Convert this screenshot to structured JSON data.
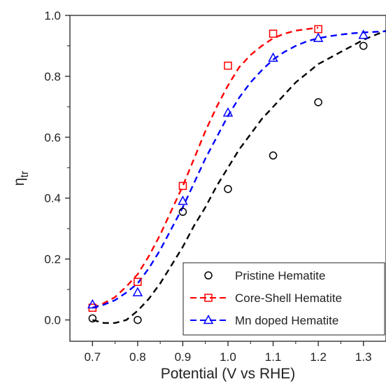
{
  "chart_data": {
    "type": "scatter",
    "xlabel": "Potential (V vs RHE)",
    "ylabel": "η",
    "ylabel_sub": "tr",
    "xlim": [
      0.65,
      1.35
    ],
    "ylim": [
      -0.07,
      1.0
    ],
    "xticks": [
      0.7,
      0.8,
      0.9,
      1.0,
      1.1,
      1.2,
      1.3
    ],
    "xtick_labels": [
      "0.7",
      "0.8",
      "0.9",
      "1.0",
      "1.1",
      "1.2",
      "1.3"
    ],
    "yticks": [
      0.0,
      0.2,
      0.4,
      0.6,
      0.8,
      1.0
    ],
    "ytick_labels": [
      "0.0",
      "0.2",
      "0.4",
      "0.6",
      "0.8",
      "1.0"
    ],
    "legend_position": "bottom-right",
    "series": [
      {
        "name": "Pristine Hematite",
        "marker": "circle",
        "color": "#000000",
        "x": [
          0.7,
          0.8,
          0.9,
          1.0,
          1.1,
          1.2,
          1.3
        ],
        "y": [
          0.005,
          0.0,
          0.355,
          0.43,
          0.54,
          0.715,
          0.9
        ],
        "fit_x": [
          0.7,
          0.725,
          0.75,
          0.775,
          0.8,
          0.825,
          0.85,
          0.875,
          0.9,
          0.925,
          0.95,
          0.975,
          1.0,
          1.025,
          1.05,
          1.075,
          1.1,
          1.125,
          1.15,
          1.175,
          1.2,
          1.225,
          1.25,
          1.275,
          1.3,
          1.325,
          1.35
        ],
        "fit_y": [
          0.0,
          -0.01,
          -0.01,
          0.0,
          0.03,
          0.07,
          0.12,
          0.18,
          0.24,
          0.31,
          0.37,
          0.44,
          0.5,
          0.56,
          0.61,
          0.66,
          0.7,
          0.74,
          0.78,
          0.81,
          0.84,
          0.86,
          0.88,
          0.9,
          0.92,
          0.935,
          0.95
        ]
      },
      {
        "name": "Core-Shell Hematite",
        "marker": "square",
        "color": "#ff0000",
        "x": [
          0.7,
          0.8,
          0.9,
          1.0,
          1.1,
          1.2
        ],
        "y": [
          0.04,
          0.125,
          0.44,
          0.835,
          0.94,
          0.955
        ],
        "fit_x": [
          0.7,
          0.725,
          0.75,
          0.775,
          0.8,
          0.825,
          0.85,
          0.875,
          0.9,
          0.925,
          0.95,
          0.975,
          1.0,
          1.025,
          1.05,
          1.075,
          1.1,
          1.125,
          1.15,
          1.175,
          1.2
        ],
        "fit_y": [
          0.04,
          0.055,
          0.075,
          0.11,
          0.15,
          0.21,
          0.28,
          0.36,
          0.44,
          0.53,
          0.62,
          0.7,
          0.77,
          0.83,
          0.87,
          0.9,
          0.925,
          0.94,
          0.95,
          0.955,
          0.96
        ]
      },
      {
        "name": "Mn doped Hematite",
        "marker": "triangle",
        "color": "#0000ff",
        "x": [
          0.7,
          0.8,
          0.9,
          1.0,
          1.1,
          1.2,
          1.3
        ],
        "y": [
          0.05,
          0.09,
          0.39,
          0.68,
          0.86,
          0.925,
          0.935
        ],
        "fit_x": [
          0.7,
          0.725,
          0.75,
          0.775,
          0.8,
          0.825,
          0.85,
          0.875,
          0.9,
          0.925,
          0.95,
          0.975,
          1.0,
          1.025,
          1.05,
          1.075,
          1.1,
          1.125,
          1.15,
          1.175,
          1.2,
          1.225,
          1.25,
          1.275,
          1.3,
          1.325,
          1.35
        ],
        "fit_y": [
          0.04,
          0.05,
          0.065,
          0.09,
          0.12,
          0.17,
          0.23,
          0.3,
          0.37,
          0.45,
          0.53,
          0.6,
          0.67,
          0.73,
          0.78,
          0.82,
          0.855,
          0.88,
          0.9,
          0.915,
          0.925,
          0.932,
          0.937,
          0.941,
          0.944,
          0.946,
          0.948
        ]
      }
    ]
  }
}
